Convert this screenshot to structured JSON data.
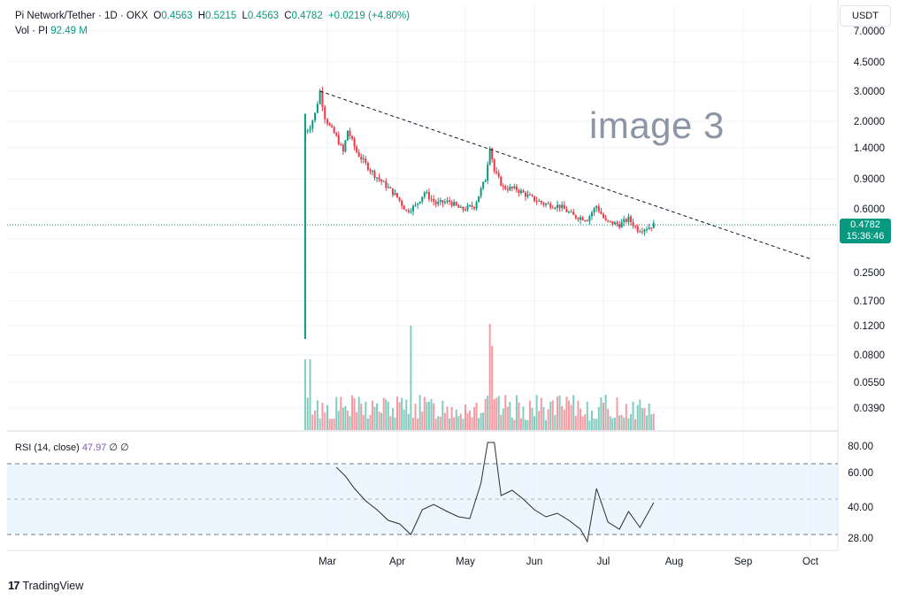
{
  "header": {
    "symbol": "Pi Network/Tether · 1D · OKX",
    "open_label": "O",
    "open": "0.4563",
    "high_label": "H",
    "high": "0.5215",
    "low_label": "L",
    "low": "0.4563",
    "close_label": "C",
    "close": "0.4782",
    "change": "+0.0219 (+4.80%)"
  },
  "volume": {
    "label": "Vol · PI",
    "value": "92.49 M"
  },
  "currency": "USDT",
  "watermark": "image 3",
  "last_price": {
    "price": "0.4782",
    "countdown": "15:36:46"
  },
  "rsi": {
    "label": "RSI (14, close)",
    "value": "47.97",
    "icons": "∅ ∅"
  },
  "brand": {
    "name": "TradingView",
    "logo": "17"
  },
  "colors": {
    "up": "#089981",
    "down": "#f23645",
    "rsi": "#2a2e39",
    "band": "#e3f2fd"
  },
  "chart_data": [
    {
      "type": "line",
      "title": "Pi Network/Tether · 1D · OKX",
      "scale": "log",
      "y_ticks": [
        "7.0000",
        "4.5000",
        "3.0000",
        "2.0000",
        "1.4000",
        "0.9000",
        "0.6000",
        "0.4000",
        "0.2500",
        "0.1700",
        "0.1200",
        "0.0800",
        "0.0550",
        "0.0390"
      ],
      "x_ticks": [
        "Mar",
        "Apr",
        "May",
        "Jun",
        "Jul",
        "Aug",
        "Sep",
        "Oct"
      ],
      "series": [
        {
          "values": [
            {
              "x": "2025-02-20",
              "y": 1.72
            },
            {
              "x": "2025-02-22",
              "y": 1.85
            },
            {
              "x": "2025-02-24",
              "y": 2.2
            },
            {
              "x": "2025-02-26",
              "y": 3.0
            },
            {
              "x": "2025-02-28",
              "y": 2.1
            },
            {
              "x": "2025-03-02",
              "y": 1.85
            },
            {
              "x": "2025-03-05",
              "y": 1.6
            },
            {
              "x": "2025-03-08",
              "y": 1.3
            },
            {
              "x": "2025-03-10",
              "y": 1.75
            },
            {
              "x": "2025-03-14",
              "y": 1.3
            },
            {
              "x": "2025-03-18",
              "y": 1.1
            },
            {
              "x": "2025-03-22",
              "y": 0.95
            },
            {
              "x": "2025-03-27",
              "y": 0.82
            },
            {
              "x": "2025-04-01",
              "y": 0.7
            },
            {
              "x": "2025-04-05",
              "y": 0.58
            },
            {
              "x": "2025-04-09",
              "y": 0.62
            },
            {
              "x": "2025-04-13",
              "y": 0.75
            },
            {
              "x": "2025-04-18",
              "y": 0.64
            },
            {
              "x": "2025-04-24",
              "y": 0.66
            },
            {
              "x": "2025-04-29",
              "y": 0.59
            },
            {
              "x": "2025-05-05",
              "y": 0.62
            },
            {
              "x": "2025-05-10",
              "y": 0.9
            },
            {
              "x": "2025-05-12",
              "y": 1.42
            },
            {
              "x": "2025-05-14",
              "y": 1.0
            },
            {
              "x": "2025-05-18",
              "y": 0.8
            },
            {
              "x": "2025-05-24",
              "y": 0.78
            },
            {
              "x": "2025-05-30",
              "y": 0.7
            },
            {
              "x": "2025-06-05",
              "y": 0.64
            },
            {
              "x": "2025-06-12",
              "y": 0.62
            },
            {
              "x": "2025-06-18",
              "y": 0.54
            },
            {
              "x": "2025-06-24",
              "y": 0.52
            },
            {
              "x": "2025-06-28",
              "y": 0.62
            },
            {
              "x": "2025-07-02",
              "y": 0.5
            },
            {
              "x": "2025-07-08",
              "y": 0.48
            },
            {
              "x": "2025-07-12",
              "y": 0.52
            },
            {
              "x": "2025-07-16",
              "y": 0.45
            },
            {
              "x": "2025-07-20",
              "y": 0.46
            },
            {
              "x": "2025-07-23",
              "y": 0.4782
            }
          ]
        }
      ],
      "trendline": [
        {
          "x": "2025-02-26",
          "y": 3.0
        },
        {
          "x": "2025-10-01",
          "y": 0.3
        }
      ]
    },
    {
      "type": "bar",
      "title": "Vol · PI",
      "y_ticks": [],
      "x_ticks": [
        "Mar",
        "Apr",
        "May",
        "Jun",
        "Jul",
        "Aug",
        "Sep",
        "Oct"
      ]
    },
    {
      "type": "line",
      "title": "RSI (14, close)",
      "y_ticks": [
        "80.00",
        "60.00",
        "40.00",
        "28.00"
      ],
      "x_ticks": [
        "Mar",
        "Apr",
        "May",
        "Jun",
        "Jul",
        "Aug",
        "Sep",
        "Oct"
      ],
      "series": [
        {
          "values": [
            {
              "x": "2025-03-05",
              "y": 68
            },
            {
              "x": "2025-03-09",
              "y": 63
            },
            {
              "x": "2025-03-13",
              "y": 56
            },
            {
              "x": "2025-03-18",
              "y": 49
            },
            {
              "x": "2025-03-23",
              "y": 44
            },
            {
              "x": "2025-03-28",
              "y": 38
            },
            {
              "x": "2025-04-02",
              "y": 36
            },
            {
              "x": "2025-04-07",
              "y": 30
            },
            {
              "x": "2025-04-12",
              "y": 44
            },
            {
              "x": "2025-04-17",
              "y": 47
            },
            {
              "x": "2025-04-23",
              "y": 43
            },
            {
              "x": "2025-04-28",
              "y": 40
            },
            {
              "x": "2025-05-03",
              "y": 39
            },
            {
              "x": "2025-05-08",
              "y": 59
            },
            {
              "x": "2025-05-11",
              "y": 82
            },
            {
              "x": "2025-05-14",
              "y": 82
            },
            {
              "x": "2025-05-17",
              "y": 52
            },
            {
              "x": "2025-05-22",
              "y": 55
            },
            {
              "x": "2025-05-27",
              "y": 50
            },
            {
              "x": "2025-06-01",
              "y": 44
            },
            {
              "x": "2025-06-06",
              "y": 40
            },
            {
              "x": "2025-06-11",
              "y": 42
            },
            {
              "x": "2025-06-16",
              "y": 38
            },
            {
              "x": "2025-06-21",
              "y": 33
            },
            {
              "x": "2025-06-24",
              "y": 26
            },
            {
              "x": "2025-06-28",
              "y": 56
            },
            {
              "x": "2025-07-03",
              "y": 37
            },
            {
              "x": "2025-07-08",
              "y": 33
            },
            {
              "x": "2025-07-12",
              "y": 43
            },
            {
              "x": "2025-07-17",
              "y": 34
            },
            {
              "x": "2025-07-23",
              "y": 48
            }
          ]
        }
      ]
    }
  ]
}
